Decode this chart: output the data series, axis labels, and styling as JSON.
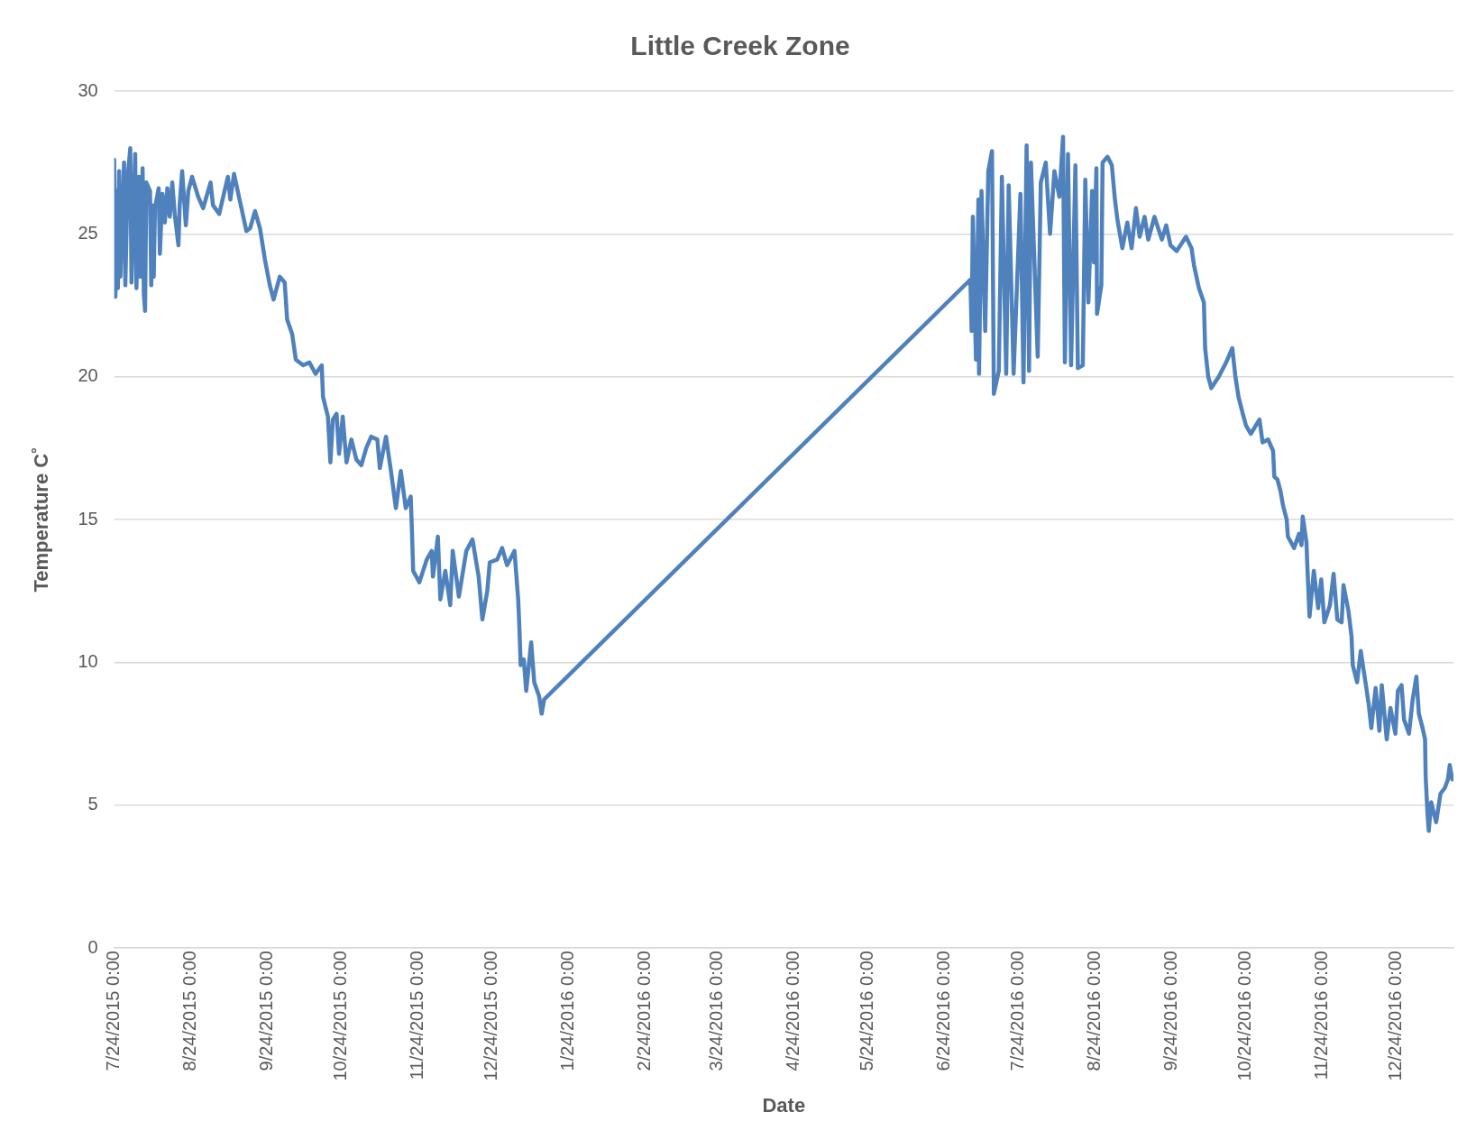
{
  "chart_data": {
    "type": "line",
    "title": "Little Creek Zone",
    "xlabel": "Date",
    "ylabel": "Temperature C˚",
    "x": [
      "2015-07-24T00:00",
      "2015-07-24T12:00",
      "2015-07-25T00:00",
      "2015-07-25T12:00",
      "2015-07-26T00:00",
      "2015-07-26T12:00",
      "2015-07-28T00:00",
      "2015-07-28T12:00",
      "2015-07-29T12:00",
      "2015-07-30T12:00",
      "2015-07-31T00:00",
      "2015-08-01T12:00",
      "2015-08-02T00:00",
      "2015-08-03T00:00",
      "2015-08-03T12:00",
      "2015-08-04T12:00",
      "2015-08-05T00:00",
      "2015-08-05T12:00",
      "2015-08-06T00:00",
      "2015-08-07T12:00",
      "2015-08-08T00:00",
      "2015-08-08T12:00",
      "2015-08-09T00:00",
      "2015-08-09T12:00",
      "2015-08-11T00:00",
      "2015-08-11T12:00",
      "2015-08-12T12:00",
      "2015-08-13T12:00",
      "2015-08-14T12:00",
      "2015-08-15T12:00",
      "2015-08-16T12:00",
      "2015-08-17T12:00",
      "2015-08-19T00:00",
      "2015-08-19T12:00",
      "2015-08-20T12:00",
      "2015-08-22T00:00",
      "2015-08-23T00:00",
      "2015-08-24T12:00",
      "2015-08-27",
      "2015-08-29",
      "2015-09-01",
      "2015-09-02",
      "2015-09-04T12:00",
      "2015-09-08",
      "2015-09-09",
      "2015-09-10T12:00",
      "2015-09-12T12:00",
      "2015-09-13T12:00",
      "2015-09-15T12:00",
      "2015-09-17",
      "2015-09-19",
      "2015-09-21",
      "2015-09-23",
      "2015-09-25",
      "2015-09-26T12:00",
      "2015-09-29",
      "2015-10-01",
      "2015-10-02",
      "2015-10-04",
      "2015-10-05T12:00",
      "2015-10-08T12:00",
      "2015-10-11",
      "2015-10-13T12:00",
      "2015-10-16T00:00",
      "2015-10-16T12:00",
      "2015-10-18T12:00",
      "2015-10-19T12:00",
      "2015-10-20T12:00",
      "2015-10-22",
      "2015-10-23",
      "2015-10-24T12:00",
      "2015-10-26",
      "2015-10-28",
      "2015-10-30",
      "2015-11-01",
      "2015-11-03",
      "2015-11-05",
      "2015-11-07T12:00",
      "2015-11-08T12:00",
      "2015-11-11",
      "2015-11-13",
      "2015-11-15",
      "2015-11-17",
      "2015-11-19",
      "2015-11-21T00:00",
      "2015-11-21T12:00",
      "2015-11-22",
      "2015-11-24T12:00",
      "2015-11-27T12:00",
      "2015-11-29T12:00",
      "2015-11-30",
      "2015-12-02",
      "2015-12-03",
      "2015-12-05",
      "2015-12-07",
      "2015-12-08",
      "2015-12-10T12:00",
      "2015-12-13T12:00",
      "2015-12-16",
      "2015-12-18T12:00",
      "2015-12-20",
      "2015-12-22",
      "2015-12-23",
      "2015-12-26",
      "2015-12-28",
      "2015-12-30",
      "2016-01-02",
      "2016-01-03T12:00",
      "2016-01-04T00:00",
      "2016-01-04T12:00",
      "2016-01-05T18:00",
      "2016-01-06T18:00",
      "2016-01-08T18:00",
      "2016-01-10",
      "2016-01-12",
      "2016-01-13",
      "2016-01-14",
      "2016-07-04T12:00",
      "2016-07-05T00:00",
      "2016-07-05T12:00",
      "2016-07-06T18:00",
      "2016-07-07T18:00",
      "2016-07-08T00:00",
      "2016-07-09",
      "2016-07-10T12:00",
      "2016-07-11T18:00",
      "2016-07-13T06:00",
      "2016-07-14",
      "2016-07-16",
      "2016-07-17T06:00",
      "2016-07-19",
      "2016-07-20",
      "2016-07-22",
      "2016-07-24T18:00",
      "2016-07-26",
      "2016-07-27T06:00",
      "2016-07-28T06:00",
      "2016-07-29",
      "2016-07-31T18:00",
      "2016-08-02",
      "2016-08-04",
      "2016-08-05T18:00",
      "2016-08-07T12:00",
      "2016-08-09T12:00",
      "2016-08-11T00:00",
      "2016-08-11T18:00",
      "2016-08-13",
      "2016-08-14T06:00",
      "2016-08-16",
      "2016-08-17",
      "2016-08-19",
      "2016-08-20",
      "2016-08-21T06:00",
      "2016-08-22T18:00",
      "2016-08-23T12:00",
      "2016-08-24T12:00",
      "2016-08-24T18:00",
      "2016-08-26T12:00",
      "2016-08-27",
      "2016-08-29",
      "2016-08-30T18:00",
      "2016-09-01",
      "2016-09-02",
      "2016-09-04",
      "2016-09-06",
      "2016-09-07T18:00",
      "2016-09-09T12:00",
      "2016-09-11",
      "2016-09-13",
      "2016-09-14T12:00",
      "2016-09-17",
      "2016-09-20",
      "2016-09-21T18:00",
      "2016-09-23T12:00",
      "2016-09-26",
      "2016-09-29T18:00",
      "2016-10-02",
      "2016-10-03",
      "2016-10-05",
      "2016-10-07T00:00",
      "2016-10-07T12:00",
      "2016-10-08T18:00",
      "2016-10-10",
      "2016-10-13",
      "2016-10-16",
      "2016-10-18T12:00",
      "2016-10-19T18:00",
      "2016-10-21",
      "2016-10-22T18:00",
      "2016-10-24",
      "2016-10-26",
      "2016-10-29T12:00",
      "2016-10-30T18:00",
      "2016-11-02",
      "2016-11-04T00:00",
      "2016-11-04T12:00",
      "2016-11-05T18:00",
      "2016-11-07",
      "2016-11-08",
      "2016-11-09T12:00",
      "2016-11-10",
      "2016-11-12T12:00",
      "2016-11-14T12:00",
      "2016-11-15T12:00",
      "2016-11-16",
      "2016-11-17T12:00",
      "2016-11-18T00:00",
      "2016-11-18T18:00",
      "2016-11-20T12:00",
      "2016-11-22T06:00",
      "2016-11-23T12:00",
      "2016-11-24T18:00",
      "2016-11-27",
      "2016-11-28T12:00",
      "2016-11-30",
      "2016-12-01T18:00",
      "2016-12-02T12:00",
      "2016-12-04T12:00",
      "2016-12-05T18:00",
      "2016-12-06T06:00",
      "2016-12-08",
      "2016-12-09T12:00",
      "2016-12-10T12:00",
      "2016-12-11T18:00",
      "2016-12-12T18:00",
      "2016-12-13T18:00",
      "2016-12-15T12:00",
      "2016-12-17",
      "2016-12-18",
      "2016-12-20",
      "2016-12-21T12:00",
      "2016-12-23T12:00",
      "2016-12-24T12:00",
      "2016-12-26",
      "2016-12-27",
      "2016-12-29",
      "2016-12-30T12:00",
      "2017-01-01",
      "2017-01-02",
      "2017-01-03T12:00",
      "2017-01-04T12:00",
      "2017-01-04T18:00",
      "2017-01-05T12:00",
      "2017-01-06",
      "2017-01-07",
      "2017-01-09",
      "2017-01-10T18:00",
      "2017-01-12T12:00",
      "2017-01-13T18:00",
      "2017-01-14T12:00",
      "2017-01-15T12:00"
    ],
    "series": [
      {
        "color": "#4f81bd",
        "values": [
          27.6,
          22.8,
          26.5,
          23.1,
          27.2,
          23.5,
          27.5,
          23.2,
          27.0,
          28.0,
          23.3,
          27.8,
          23.1,
          27.0,
          23.5,
          27.3,
          22.9,
          22.3,
          26.8,
          26.5,
          23.2,
          26.0,
          23.5,
          25.9,
          26.6,
          24.3,
          26.4,
          25.4,
          26.6,
          25.6,
          26.8,
          25.7,
          24.6,
          26.0,
          27.2,
          25.3,
          26.5,
          27.0,
          26.3,
          25.9,
          26.8,
          26.0,
          25.7,
          27.0,
          26.2,
          27.1,
          26.3,
          25.9,
          25.1,
          25.2,
          25.8,
          25.2,
          24.1,
          23.2,
          22.7,
          23.5,
          23.3,
          22.0,
          21.5,
          20.6,
          20.4,
          20.5,
          20.1,
          20.4,
          19.3,
          18.6,
          17.0,
          18.5,
          18.7,
          17.3,
          18.6,
          17.0,
          17.8,
          17.1,
          16.9,
          17.5,
          17.9,
          17.8,
          16.8,
          17.9,
          16.7,
          15.4,
          16.7,
          15.4,
          15.8,
          14.6,
          13.2,
          12.8,
          13.6,
          13.9,
          13.0,
          14.4,
          12.2,
          13.2,
          12.0,
          13.9,
          12.3,
          13.9,
          14.3,
          13.0,
          11.5,
          12.5,
          13.5,
          13.6,
          14.0,
          13.4,
          13.9,
          12.2,
          11.2,
          9.9,
          10.1,
          9.0,
          10.7,
          9.3,
          8.8,
          8.2,
          8.7,
          23.4,
          21.6,
          25.6,
          20.6,
          26.2,
          20.1,
          26.5,
          21.6,
          27.2,
          27.9,
          19.4,
          20.2,
          27.0,
          20.1,
          26.7,
          20.1,
          26.4,
          19.8,
          28.1,
          20.2,
          27.5,
          20.7,
          26.8,
          27.5,
          25.0,
          27.2,
          26.3,
          28.4,
          20.5,
          27.8,
          20.4,
          27.4,
          20.3,
          20.4,
          26.9,
          22.6,
          26.5,
          24.0,
          27.3,
          22.2,
          23.2,
          27.5,
          27.7,
          27.4,
          26.2,
          25.5,
          24.5,
          25.4,
          24.5,
          25.9,
          24.9,
          25.6,
          24.8,
          25.6,
          24.8,
          25.3,
          24.6,
          24.4,
          24.9,
          24.5,
          23.9,
          23.1,
          22.6,
          21.0,
          20.0,
          19.6,
          20.0,
          20.5,
          21.0,
          20.0,
          19.3,
          18.7,
          18.3,
          18.0,
          18.5,
          17.7,
          17.8,
          17.4,
          16.5,
          16.4,
          16.0,
          15.5,
          15.0,
          14.4,
          14.0,
          14.5,
          14.1,
          15.1,
          14.2,
          13.1,
          11.6,
          13.2,
          11.9,
          12.9,
          11.4,
          12.0,
          13.1,
          11.5,
          11.4,
          12.7,
          11.8,
          10.9,
          9.9,
          9.3,
          10.4,
          9.8,
          9.1,
          8.5,
          7.7,
          9.1,
          7.6,
          9.2,
          7.3,
          8.4,
          7.5,
          9.0,
          9.2,
          8.0,
          7.5,
          8.7,
          9.5,
          8.2,
          7.7,
          7.3,
          6.0,
          4.7,
          4.1,
          5.1,
          4.4,
          5.4,
          5.6,
          5.9,
          6.4,
          5.9
        ]
      }
    ],
    "xlim": [
      "2015-07-24",
      "2017-01-16"
    ],
    "xticks": [
      {
        "value": "2015-07-24",
        "label": "7/24/2015 0:00"
      },
      {
        "value": "2015-08-24",
        "label": "8/24/2015 0:00"
      },
      {
        "value": "2015-09-24",
        "label": "9/24/2015 0:00"
      },
      {
        "value": "2015-10-24",
        "label": "10/24/2015 0:00"
      },
      {
        "value": "2015-11-24",
        "label": "11/24/2015 0:00"
      },
      {
        "value": "2015-12-24",
        "label": "12/24/2015 0:00"
      },
      {
        "value": "2016-01-24",
        "label": "1/24/2016 0:00"
      },
      {
        "value": "2016-02-24",
        "label": "2/24/2016 0:00"
      },
      {
        "value": "2016-03-24",
        "label": "3/24/2016 0:00"
      },
      {
        "value": "2016-04-24",
        "label": "4/24/2016 0:00"
      },
      {
        "value": "2016-05-24",
        "label": "5/24/2016 0:00"
      },
      {
        "value": "2016-06-24",
        "label": "6/24/2016 0:00"
      },
      {
        "value": "2016-07-24",
        "label": "7/24/2016 0:00"
      },
      {
        "value": "2016-08-24",
        "label": "8/24/2016 0:00"
      },
      {
        "value": "2016-09-24",
        "label": "9/24/2016 0:00"
      },
      {
        "value": "2016-10-24",
        "label": "10/24/2016 0:00"
      },
      {
        "value": "2016-11-24",
        "label": "11/24/2016 0:00"
      },
      {
        "value": "2016-12-24",
        "label": "12/24/2016 0:00"
      }
    ],
    "ylim": [
      0,
      30
    ],
    "yticks": [
      0,
      5,
      10,
      15,
      20,
      25,
      30
    ],
    "grid": "y",
    "legend": false,
    "marker": "none",
    "line_style": "solid"
  }
}
